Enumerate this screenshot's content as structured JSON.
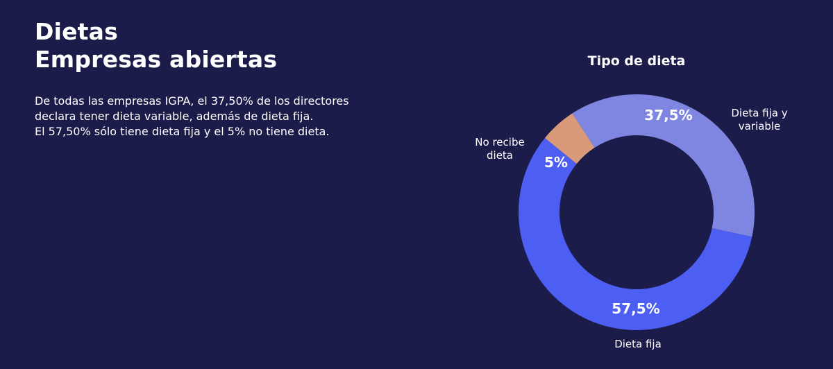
{
  "title": {
    "line1": "Dietas",
    "line2": "Empresas abiertas"
  },
  "description": {
    "line1": "De todas las empresas IGPA, el 37,50% de los directores",
    "line2": "declara tener dieta variable, además de dieta fija.",
    "line3": "El 57,50% sólo tiene dieta fija y el 5% no tiene dieta."
  },
  "chart_data": {
    "type": "pie",
    "variant": "donut",
    "title": "Tipo de dieta",
    "slices": [
      {
        "name": "Dieta fija y variable",
        "label_lines": [
          "Dieta fija y",
          "variable"
        ],
        "value": 37.5,
        "value_label": "37,5%",
        "color": "#7f86e2"
      },
      {
        "name": "Dieta fija",
        "label_lines": [
          "Dieta fija"
        ],
        "value": 57.5,
        "value_label": "57,5%",
        "color": "#4d5ef3"
      },
      {
        "name": "No recibe dieta",
        "label_lines": [
          "No recibe",
          "dieta"
        ],
        "value": 5,
        "value_label": "5%",
        "color": "#d89a78"
      }
    ]
  },
  "colors": {
    "background": "#1c1c4a",
    "text": "#ffffff"
  }
}
